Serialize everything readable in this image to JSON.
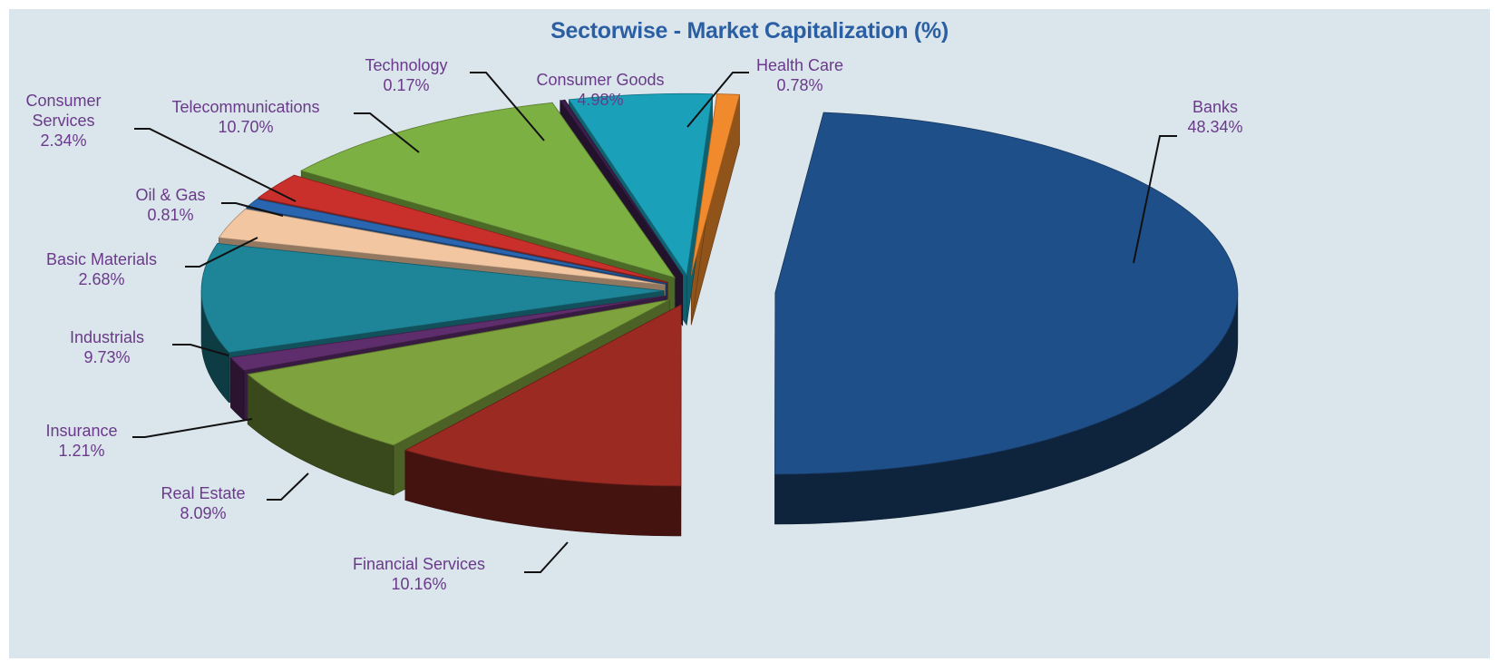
{
  "chart_data": {
    "type": "pie",
    "title": "Sectorwise - Market Capitalization (%)",
    "unit": "%",
    "slices": [
      {
        "label": "Banks",
        "value": 48.34,
        "display": "48.34%",
        "color": "#1f4f88"
      },
      {
        "label": "Financial Services",
        "value": 10.16,
        "display": "10.16%",
        "color": "#9a2a22"
      },
      {
        "label": "Real Estate",
        "value": 8.09,
        "display": "8.09%",
        "color": "#7ea23d"
      },
      {
        "label": "Insurance",
        "value": 1.21,
        "display": "1.21%",
        "color": "#5e2d6b"
      },
      {
        "label": "Industrials",
        "value": 9.73,
        "display": "9.73%",
        "color": "#1e8598"
      },
      {
        "label": "Basic Materials",
        "value": 2.68,
        "display": "2.68%",
        "color": "#f3c6a2"
      },
      {
        "label": "Oil & Gas",
        "value": 0.81,
        "display": "0.81%",
        "color": "#2a66b0"
      },
      {
        "label": "Consumer Services",
        "value": 2.34,
        "display": "2.34%",
        "color": "#c9302c"
      },
      {
        "label": "Telecommunications",
        "value": 10.7,
        "display": "10.70%",
        "color": "#7db043"
      },
      {
        "label": "Technology",
        "value": 0.17,
        "display": "0.17%",
        "color": "#3b1e4a"
      },
      {
        "label": "Consumer Goods",
        "value": 4.98,
        "display": "4.98%",
        "color": "#1aa0b8"
      },
      {
        "label": "Health Care",
        "value": 0.78,
        "display": "0.78%",
        "color": "#f08a2c"
      }
    ]
  }
}
